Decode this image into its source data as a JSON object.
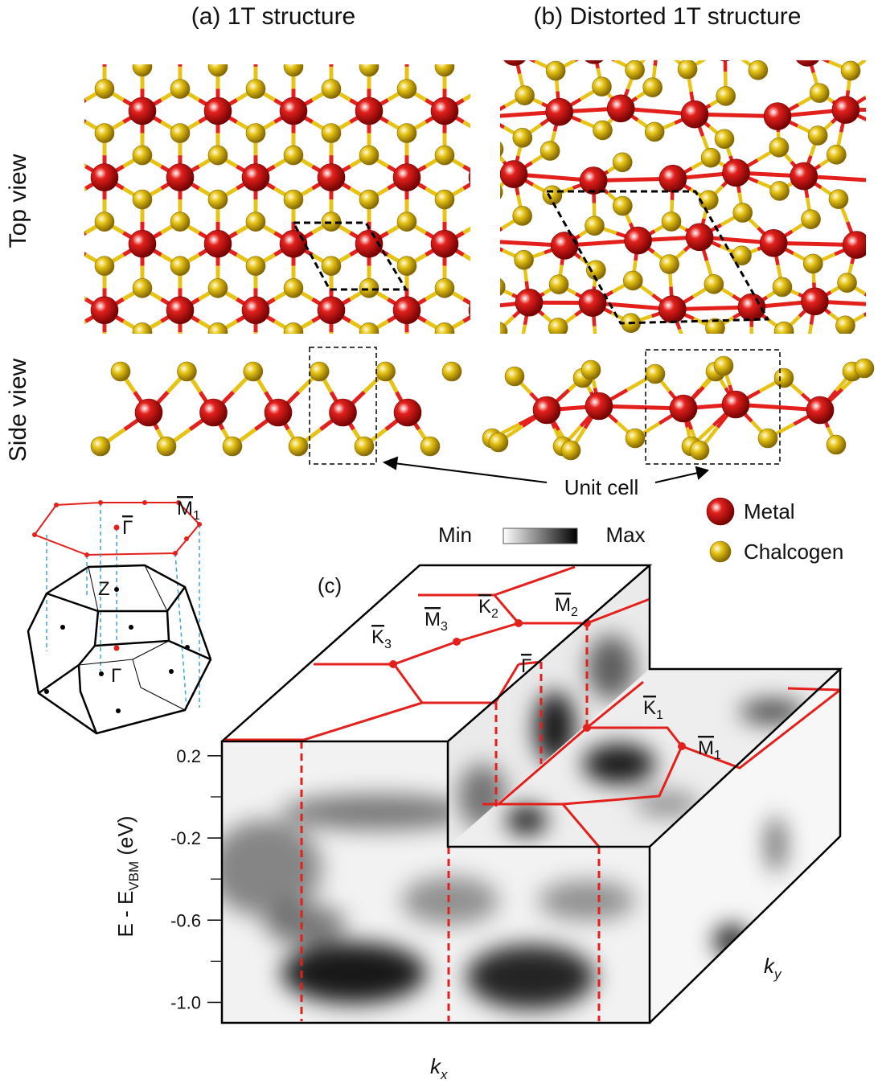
{
  "panels": {
    "a": {
      "title": "(a) 1T structure"
    },
    "b": {
      "title": "(b) Distorted 1T structure"
    },
    "c": {
      "label": "(c)"
    }
  },
  "row_labels": [
    "Top view",
    "Side view"
  ],
  "annotation": "Unit cell",
  "legend": [
    {
      "name": "Metal",
      "color": "#e3201c"
    },
    {
      "name": "Chalcogen",
      "color": "#e6c315"
    }
  ],
  "colorbar": {
    "min_label": "Min",
    "max_label": "Max"
  },
  "energy_axis": {
    "label": {
      "main": "E - E",
      "sub": "VBM",
      "unit": " (eV)"
    },
    "ylim": [
      -1.1,
      0.27
    ],
    "yticks": [
      0.2,
      -0.2,
      -0.6,
      {
        "value": -1,
        "label": "-1.0"
      }
    ],
    "minor_ticks": [
      0,
      -0.4,
      -0.8
    ]
  },
  "momentum_axes": {
    "kx": {
      "base": "k",
      "sub": "x"
    },
    "ky": {
      "base": "k",
      "sub": "y"
    }
  },
  "bulk_bz_labels": [
    {
      "base": "M",
      "sub": "1",
      "bar": true
    },
    {
      "base": "Γ",
      "bar": true
    },
    {
      "base": "Z",
      "bar": false
    },
    {
      "base": "Γ",
      "bar": false
    }
  ],
  "surface_bz_labels": [
    {
      "base": "K",
      "sub": "3",
      "bar": true
    },
    {
      "base": "M",
      "sub": "3",
      "bar": true
    },
    {
      "base": "K",
      "sub": "2",
      "bar": true
    },
    {
      "base": "M",
      "sub": "2",
      "bar": true
    },
    {
      "base": "Γ",
      "bar": true
    },
    {
      "base": "K",
      "sub": "1",
      "bar": true
    },
    {
      "base": "M",
      "sub": "1",
      "bar": true
    }
  ]
}
